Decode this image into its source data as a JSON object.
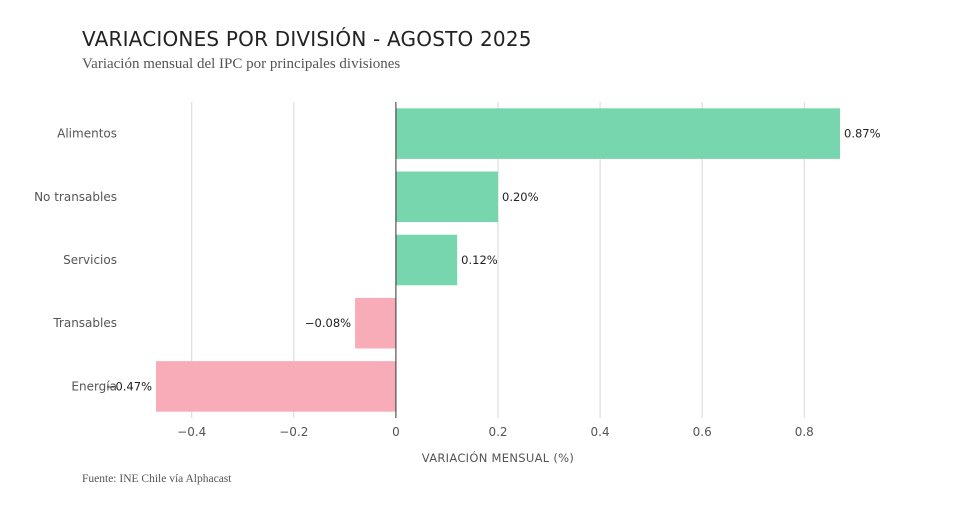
{
  "header": {
    "title": "VARIACIONES POR DIVISIÓN - AGOSTO 2025",
    "subtitle": "Variación mensual del IPC por principales divisiones"
  },
  "footer": {
    "source": "Fuente: INE Chile vía Alphacast"
  },
  "chart_data": {
    "type": "bar",
    "orientation": "horizontal",
    "categories": [
      "Alimentos",
      "No transables",
      "Servicios",
      "Transables",
      "Energía"
    ],
    "values": [
      0.87,
      0.2,
      0.12,
      -0.08,
      -0.47
    ],
    "value_labels": [
      "0.87%",
      "0.20%",
      "0.12%",
      "−0.08%",
      "−0.47%"
    ],
    "xlabel": "VARIACIÓN MENSUAL (%)",
    "ylabel": "",
    "xlim": [
      -0.47,
      0.87
    ],
    "x_ticks": [
      -0.4,
      -0.2,
      0,
      0.2,
      0.4,
      0.6,
      0.8
    ],
    "x_tick_labels": [
      "−0.4",
      "−0.2",
      "0",
      "0.2",
      "0.4",
      "0.6",
      "0.8"
    ],
    "grid": true,
    "legend": "none",
    "colors": {
      "positive": "#77d6ae",
      "negative": "#f7acb7",
      "grid": "#d6d6d6",
      "zero_line": "#333333"
    }
  }
}
